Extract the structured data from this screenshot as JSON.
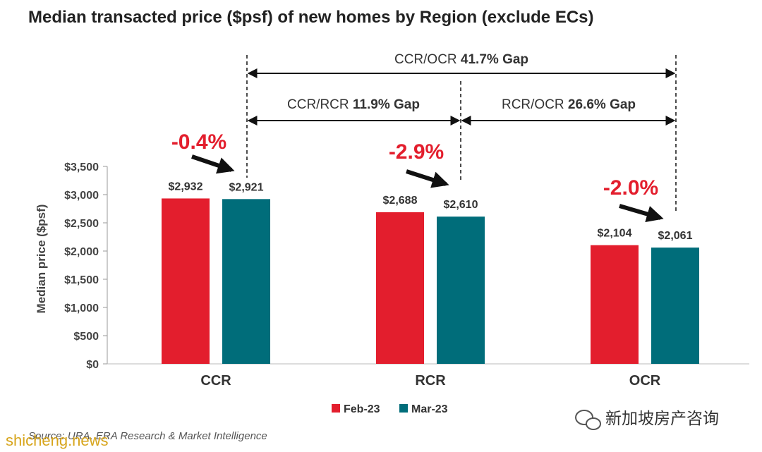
{
  "chart_data": {
    "type": "bar",
    "title": "Median transacted price ($psf) of new homes by Region (exclude ECs)",
    "ylabel": "Median price ($psf)",
    "ylim": [
      0,
      3500
    ],
    "yticks": [
      0,
      500,
      1000,
      1500,
      2000,
      2500,
      3000,
      3500
    ],
    "ytick_labels": [
      "$0",
      "$500",
      "$1,000",
      "$1,500",
      "$2,000",
      "$2,500",
      "$3,000",
      "$3,500"
    ],
    "categories": [
      "CCR",
      "RCR",
      "OCR"
    ],
    "series": [
      {
        "name": "Feb-23",
        "color": "#e31e2d",
        "values": [
          2932,
          2688,
          2104
        ],
        "labels": [
          "$2,932",
          "$2,688",
          "$2,104"
        ]
      },
      {
        "name": "Mar-23",
        "color": "#006d7a",
        "values": [
          2921,
          2610,
          2061
        ],
        "labels": [
          "$2,921",
          "$2,610",
          "$2,061"
        ]
      }
    ],
    "changes": [
      "-0.4%",
      "-2.9%",
      "-2.0%"
    ],
    "gaps": [
      {
        "prefix": "CCR/OCR ",
        "value": "41.7% Gap",
        "from": "CCR",
        "to": "OCR"
      },
      {
        "prefix": "CCR/RCR ",
        "value": "11.9% Gap",
        "from": "CCR",
        "to": "RCR"
      },
      {
        "prefix": "RCR/OCR ",
        "value": "26.6% Gap",
        "from": "RCR",
        "to": "OCR"
      }
    ],
    "legend_position": "bottom",
    "grid": false
  },
  "source": "Source: URA, ERA Research & Market Intelligence",
  "watermark": {
    "wechat_icon": "wechat-icon",
    "text": "新加坡房产咨询",
    "site": "shicheng.news"
  }
}
